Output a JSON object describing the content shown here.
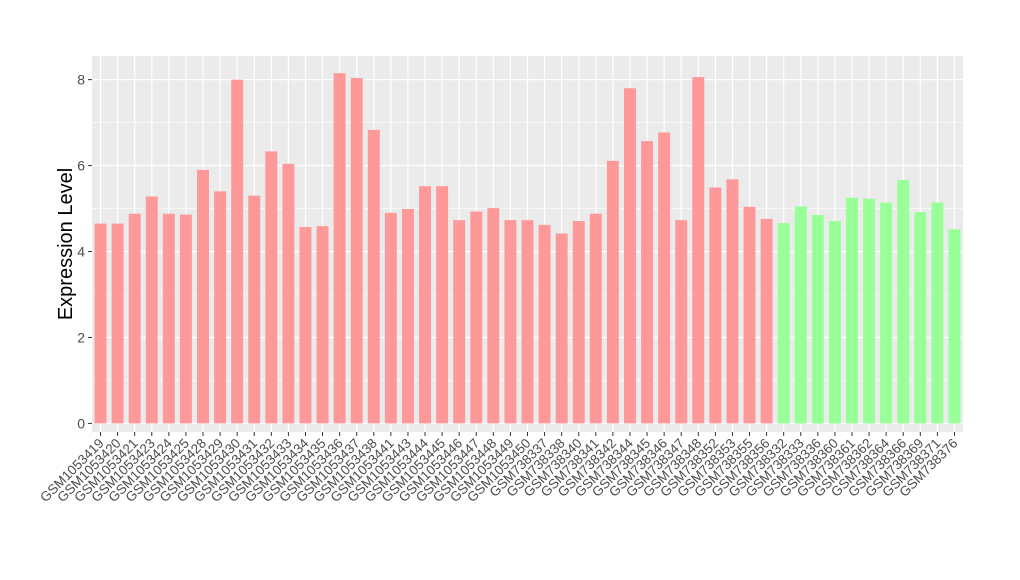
{
  "chart_data": {
    "type": "bar",
    "ylabel": "Expression Level",
    "xlabel": "",
    "ylim": [
      -0.2,
      8.55
    ],
    "yticks": [
      0,
      2,
      4,
      6,
      8
    ],
    "grid": true,
    "legend": "none",
    "colors": {
      "group_a": "#ff9999",
      "group_b": "#99ff99",
      "panel": "#ebebeb",
      "grid": "#ffffff"
    },
    "categories": [
      "GSM1053419",
      "GSM1053420",
      "GSM1053421",
      "GSM1053423",
      "GSM1053424",
      "GSM1053425",
      "GSM1053428",
      "GSM1053429",
      "GSM1053430",
      "GSM1053431",
      "GSM1053432",
      "GSM1053433",
      "GSM1053434",
      "GSM1053435",
      "GSM1053436",
      "GSM1053437",
      "GSM1053438",
      "GSM1053441",
      "GSM1053443",
      "GSM1053444",
      "GSM1053445",
      "GSM1053446",
      "GSM1053447",
      "GSM1053448",
      "GSM1053449",
      "GSM1053450",
      "GSM738337",
      "GSM738338",
      "GSM738340",
      "GSM738341",
      "GSM738342",
      "GSM738344",
      "GSM738345",
      "GSM738346",
      "GSM738347",
      "GSM738348",
      "GSM738352",
      "GSM738353",
      "GSM738355",
      "GSM738356",
      "GSM738332",
      "GSM738333",
      "GSM738336",
      "GSM738360",
      "GSM738361",
      "GSM738362",
      "GSM738364",
      "GSM738366",
      "GSM738369",
      "GSM738371",
      "GSM738376"
    ],
    "values": [
      4.65,
      4.65,
      4.88,
      5.28,
      4.88,
      4.86,
      5.9,
      5.4,
      8.0,
      5.3,
      6.33,
      6.04,
      4.57,
      4.59,
      8.15,
      8.04,
      6.83,
      4.9,
      4.99,
      5.52,
      5.52,
      4.73,
      4.93,
      5.01,
      4.73,
      4.73,
      4.62,
      4.42,
      4.71,
      4.88,
      6.11,
      7.8,
      6.57,
      6.77,
      4.73,
      8.06,
      5.49,
      5.68,
      5.04,
      4.76,
      4.66,
      5.05,
      4.85,
      4.71,
      5.25,
      5.23,
      5.14,
      5.66,
      4.92,
      5.14,
      4.52
    ],
    "groups": [
      "a",
      "a",
      "a",
      "a",
      "a",
      "a",
      "a",
      "a",
      "a",
      "a",
      "a",
      "a",
      "a",
      "a",
      "a",
      "a",
      "a",
      "a",
      "a",
      "a",
      "a",
      "a",
      "a",
      "a",
      "a",
      "a",
      "a",
      "a",
      "a",
      "a",
      "a",
      "a",
      "a",
      "a",
      "a",
      "a",
      "a",
      "a",
      "a",
      "a",
      "b",
      "b",
      "b",
      "b",
      "b",
      "b",
      "b",
      "b",
      "b",
      "b",
      "b"
    ]
  }
}
